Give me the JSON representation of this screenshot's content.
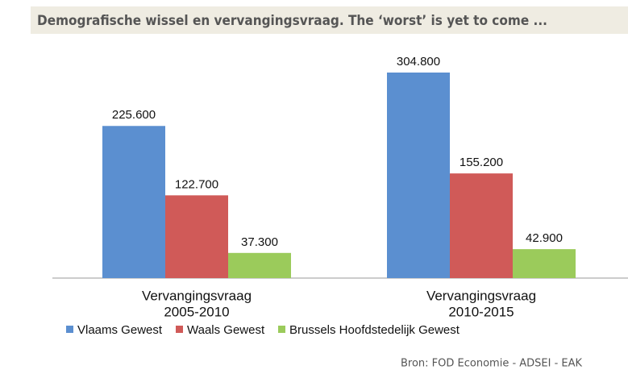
{
  "chart_data": {
    "type": "bar",
    "title": "Demografische wissel en vervangingsvraag. The ‘worst’ is yet to come ...",
    "categories": [
      [
        "Vervangingsvraag",
        "2005-2010"
      ],
      [
        "Vervangingsvraag",
        "2010-2015"
      ]
    ],
    "series": [
      {
        "name": "Vlaams Gewest",
        "color": "#5b8fd0",
        "values": [
          225600,
          304800
        ],
        "value_labels": [
          "225.600",
          "304.800"
        ]
      },
      {
        "name": "Waals Gewest",
        "color": "#d05a58",
        "values": [
          122700,
          155200
        ],
        "value_labels": [
          "122.700",
          "155.200"
        ]
      },
      {
        "name": "Brussels Hoofdstedelijk Gewest",
        "color": "#9bcb5b",
        "values": [
          37300,
          42900
        ],
        "value_labels": [
          "37.300",
          "42.900"
        ]
      }
    ],
    "source": "Bron: FOD Economie - ADSEI - EAK"
  }
}
